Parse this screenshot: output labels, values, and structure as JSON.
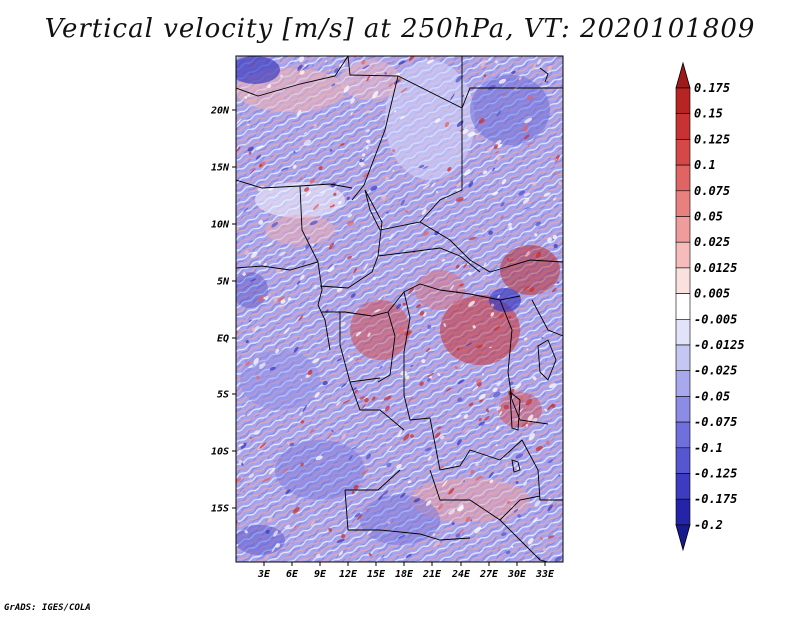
{
  "title": "Vertical velocity [m/s] at 250hPa, VT: 2020101809",
  "credit": "GrADS: IGES/COLA",
  "map": {
    "variable": "Vertical velocity",
    "units": "m/s",
    "level": "250hPa",
    "valid_time": "2020101809",
    "lat_ticks": [
      "20N",
      "15N",
      "10N",
      "5N",
      "EQ",
      "5S",
      "10S",
      "15S"
    ],
    "lon_ticks": [
      "3E",
      "6E",
      "9E",
      "12E",
      "15E",
      "18E",
      "21E",
      "24E",
      "27E",
      "30E",
      "33E"
    ]
  },
  "colorbar": {
    "levels": [
      "0.175",
      "0.15",
      "0.125",
      "0.1",
      "0.075",
      "0.05",
      "0.025",
      "0.0125",
      "0.005",
      "-0.005",
      "-0.0125",
      "-0.025",
      "-0.05",
      "-0.075",
      "-0.1",
      "-0.125",
      "-0.175",
      "-0.2"
    ],
    "colors": [
      "#a01a1a",
      "#b82424",
      "#c83232",
      "#d64848",
      "#e06464",
      "#e88080",
      "#f09c9c",
      "#f6bcbc",
      "#fbe0e0",
      "#ffffff",
      "#e2e2fa",
      "#c6c6f4",
      "#a8a8ee",
      "#8c8ce6",
      "#7070dc",
      "#5656d0",
      "#3c3cc0",
      "#2424a8",
      "#1a1a90"
    ]
  }
}
